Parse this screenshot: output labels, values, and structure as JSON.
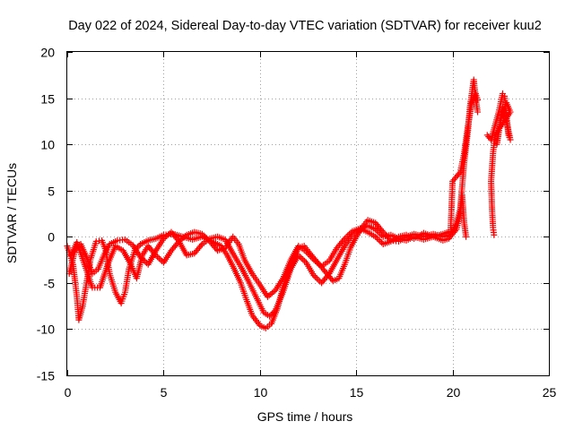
{
  "chart_data": {
    "type": "scatter",
    "title": "Day 022 of 2024, Sidereal Day-to-day VTEC variation (SDTVAR) for receiver kuu2",
    "xlabel": "GPS time / hours",
    "ylabel": "SDTVAR / TECUs",
    "xlim": [
      0,
      25
    ],
    "ylim": [
      -15,
      20
    ],
    "xticks": [
      0,
      5,
      10,
      15,
      20,
      25
    ],
    "yticks": [
      -15,
      -10,
      -5,
      0,
      5,
      10,
      15,
      20
    ],
    "xtick_labels": [
      "0",
      "5",
      "10",
      "15",
      "20",
      "25"
    ],
    "ytick_labels": [
      "-15",
      "-10",
      "-5",
      "0",
      "5",
      "10",
      "15",
      "20"
    ],
    "grid": true,
    "marker": "plus",
    "color": "#ff0000",
    "series": [
      {
        "name": "track-a",
        "points": [
          [
            0.0,
            -1.0
          ],
          [
            0.3,
            -3.0
          ],
          [
            0.5,
            -6.5
          ],
          [
            0.6,
            -9.0
          ],
          [
            0.8,
            -7.5
          ],
          [
            1.0,
            -5.0
          ],
          [
            1.2,
            -2.5
          ],
          [
            1.5,
            -0.5
          ],
          [
            1.8,
            -0.4
          ],
          [
            2.0,
            -1.5
          ],
          [
            2.2,
            -4.0
          ],
          [
            2.5,
            -6.0
          ],
          [
            2.8,
            -7.2
          ],
          [
            3.0,
            -6.0
          ],
          [
            3.2,
            -3.5
          ],
          [
            3.5,
            -1.5
          ],
          [
            3.8,
            -0.8
          ],
          [
            4.2,
            -0.4
          ],
          [
            4.6,
            -0.2
          ],
          [
            5.0,
            0.2
          ],
          [
            5.5,
            0.3
          ],
          [
            6.0,
            0.0
          ],
          [
            6.5,
            -0.3
          ],
          [
            7.0,
            0.0
          ],
          [
            7.5,
            -0.5
          ],
          [
            8.0,
            -1.0
          ],
          [
            8.3,
            -2.0
          ],
          [
            8.6,
            -3.2
          ],
          [
            9.0,
            -5.0
          ],
          [
            9.3,
            -6.8
          ],
          [
            9.6,
            -8.5
          ],
          [
            10.0,
            -9.6
          ],
          [
            10.3,
            -9.9
          ],
          [
            10.6,
            -9.4
          ],
          [
            10.9,
            -7.8
          ],
          [
            11.2,
            -5.5
          ],
          [
            11.5,
            -3.8
          ],
          [
            11.8,
            -2.2
          ],
          [
            12.0,
            -1.2
          ],
          [
            12.3,
            -1.0
          ],
          [
            12.6,
            -1.8
          ],
          [
            13.0,
            -2.8
          ],
          [
            13.4,
            -3.8
          ],
          [
            13.8,
            -4.8
          ],
          [
            14.1,
            -4.5
          ],
          [
            14.4,
            -3.0
          ],
          [
            14.7,
            -1.2
          ],
          [
            15.0,
            0.0
          ],
          [
            15.3,
            1.0
          ],
          [
            15.6,
            1.8
          ],
          [
            16.0,
            1.5
          ],
          [
            16.4,
            0.5
          ],
          [
            16.8,
            -0.4
          ],
          [
            17.2,
            -0.5
          ],
          [
            17.6,
            0.0
          ],
          [
            18.0,
            0.3
          ],
          [
            18.5,
            0.0
          ],
          [
            19.0,
            0.3
          ],
          [
            19.5,
            0.0
          ],
          [
            19.8,
            0.2
          ],
          [
            20.0,
            0.5
          ],
          [
            20.2,
            1.5
          ],
          [
            20.4,
            3.0
          ],
          [
            20.6,
            8.0
          ],
          [
            20.8,
            11.5
          ],
          [
            20.9,
            14.0
          ],
          [
            21.0,
            15.5
          ],
          [
            21.1,
            17.0
          ],
          [
            21.2,
            15.0
          ],
          [
            21.3,
            13.5
          ]
        ]
      },
      {
        "name": "track-b",
        "points": [
          [
            0.1,
            -4.0
          ],
          [
            0.4,
            -1.5
          ],
          [
            0.7,
            -0.8
          ],
          [
            1.0,
            -2.2
          ],
          [
            1.3,
            -4.0
          ],
          [
            1.6,
            -3.5
          ],
          [
            1.9,
            -2.0
          ],
          [
            2.2,
            -0.8
          ],
          [
            2.6,
            -0.4
          ],
          [
            3.0,
            -0.3
          ],
          [
            3.4,
            -0.9
          ],
          [
            3.8,
            -2.2
          ],
          [
            4.2,
            -3.0
          ],
          [
            4.6,
            -1.5
          ],
          [
            5.0,
            -0.2
          ],
          [
            5.4,
            0.5
          ],
          [
            5.8,
            -0.5
          ],
          [
            6.2,
            -2.0
          ],
          [
            6.6,
            -1.8
          ],
          [
            7.0,
            -0.8
          ],
          [
            7.4,
            -0.2
          ],
          [
            7.8,
            0.0
          ],
          [
            8.2,
            -0.3
          ],
          [
            8.6,
            -1.8
          ],
          [
            9.0,
            -3.2
          ],
          [
            9.4,
            -4.8
          ],
          [
            9.8,
            -6.5
          ],
          [
            10.2,
            -8.2
          ],
          [
            10.5,
            -8.6
          ],
          [
            10.8,
            -8.0
          ],
          [
            11.2,
            -6.0
          ],
          [
            11.6,
            -3.5
          ],
          [
            12.0,
            -2.0
          ],
          [
            12.4,
            -2.8
          ],
          [
            12.8,
            -4.2
          ],
          [
            13.2,
            -5.0
          ],
          [
            13.6,
            -4.0
          ],
          [
            14.0,
            -2.5
          ],
          [
            14.4,
            -1.0
          ],
          [
            14.8,
            0.2
          ],
          [
            15.2,
            0.8
          ],
          [
            15.6,
            1.2
          ],
          [
            16.0,
            0.8
          ],
          [
            16.4,
            0.0
          ],
          [
            16.8,
            0.2
          ],
          [
            17.2,
            -0.2
          ],
          [
            17.6,
            -0.4
          ],
          [
            18.0,
            0.0
          ],
          [
            18.5,
            -0.3
          ],
          [
            19.0,
            0.0
          ],
          [
            19.5,
            -0.4
          ],
          [
            19.8,
            -0.2
          ],
          [
            20.0,
            0.3
          ],
          [
            20.2,
            0.8
          ],
          [
            20.4,
            2.5
          ],
          [
            20.5,
            4.5
          ],
          [
            20.6,
            1.5
          ],
          [
            20.7,
            0.0
          ]
        ]
      },
      {
        "name": "track-c",
        "points": [
          [
            0.2,
            -2.0
          ],
          [
            0.5,
            -0.6
          ],
          [
            0.9,
            -3.0
          ],
          [
            1.3,
            -5.5
          ],
          [
            1.7,
            -5.5
          ],
          [
            2.1,
            -3.0
          ],
          [
            2.5,
            -1.0
          ],
          [
            2.9,
            -1.5
          ],
          [
            3.3,
            -3.0
          ],
          [
            3.6,
            -4.5
          ],
          [
            3.9,
            -2.0
          ],
          [
            4.2,
            -1.0
          ],
          [
            4.6,
            -2.0
          ],
          [
            5.0,
            -2.8
          ],
          [
            5.4,
            -1.5
          ],
          [
            5.8,
            -0.5
          ],
          [
            6.2,
            0.2
          ],
          [
            6.6,
            0.5
          ],
          [
            7.0,
            0.3
          ],
          [
            7.4,
            -0.5
          ],
          [
            7.8,
            -1.5
          ],
          [
            8.2,
            -1.2
          ],
          [
            8.6,
            0.0
          ],
          [
            8.9,
            -0.8
          ],
          [
            9.2,
            -2.5
          ],
          [
            9.6,
            -4.0
          ],
          [
            10.0,
            -5.2
          ],
          [
            10.4,
            -6.5
          ],
          [
            10.8,
            -5.8
          ],
          [
            11.2,
            -4.5
          ],
          [
            11.6,
            -2.5
          ],
          [
            12.0,
            -1.0
          ],
          [
            12.4,
            -1.6
          ],
          [
            12.8,
            -2.5
          ],
          [
            13.2,
            -3.2
          ],
          [
            13.6,
            -2.6
          ],
          [
            14.0,
            -1.2
          ],
          [
            14.4,
            -0.2
          ],
          [
            14.8,
            0.6
          ],
          [
            15.2,
            0.9
          ],
          [
            15.6,
            0.5
          ],
          [
            16.0,
            0.0
          ],
          [
            16.4,
            -0.8
          ],
          [
            16.8,
            -0.5
          ],
          [
            17.2,
            0.0
          ],
          [
            17.6,
            0.2
          ],
          [
            18.0,
            -0.2
          ],
          [
            18.5,
            0.4
          ],
          [
            19.0,
            0.0
          ],
          [
            19.5,
            0.3
          ],
          [
            19.9,
            0.6
          ],
          [
            20.0,
            6.0
          ],
          [
            20.2,
            6.5
          ],
          [
            20.4,
            7.0
          ],
          [
            20.6,
            9.0
          ],
          [
            20.8,
            12.0
          ],
          [
            21.0,
            14.5
          ],
          [
            21.2,
            15.5
          ],
          [
            21.3,
            14.8
          ]
        ]
      },
      {
        "name": "track-d",
        "points": [
          [
            21.8,
            11.0
          ],
          [
            22.0,
            10.5
          ],
          [
            22.2,
            12.0
          ],
          [
            22.4,
            13.5
          ],
          [
            22.6,
            15.5
          ],
          [
            22.7,
            15.2
          ],
          [
            22.8,
            13.0
          ],
          [
            22.9,
            11.0
          ],
          [
            23.0,
            10.5
          ],
          [
            22.8,
            12.5
          ],
          [
            22.6,
            14.0
          ],
          [
            22.4,
            11.5
          ],
          [
            22.3,
            10.0
          ],
          [
            22.5,
            12.8
          ],
          [
            22.8,
            14.5
          ],
          [
            23.0,
            13.5
          ],
          [
            22.2,
            11.0
          ],
          [
            22.1,
            9.0
          ],
          [
            22.0,
            6.0
          ],
          [
            22.05,
            3.0
          ],
          [
            22.1,
            1.0
          ],
          [
            22.15,
            0.2
          ]
        ]
      }
    ]
  }
}
